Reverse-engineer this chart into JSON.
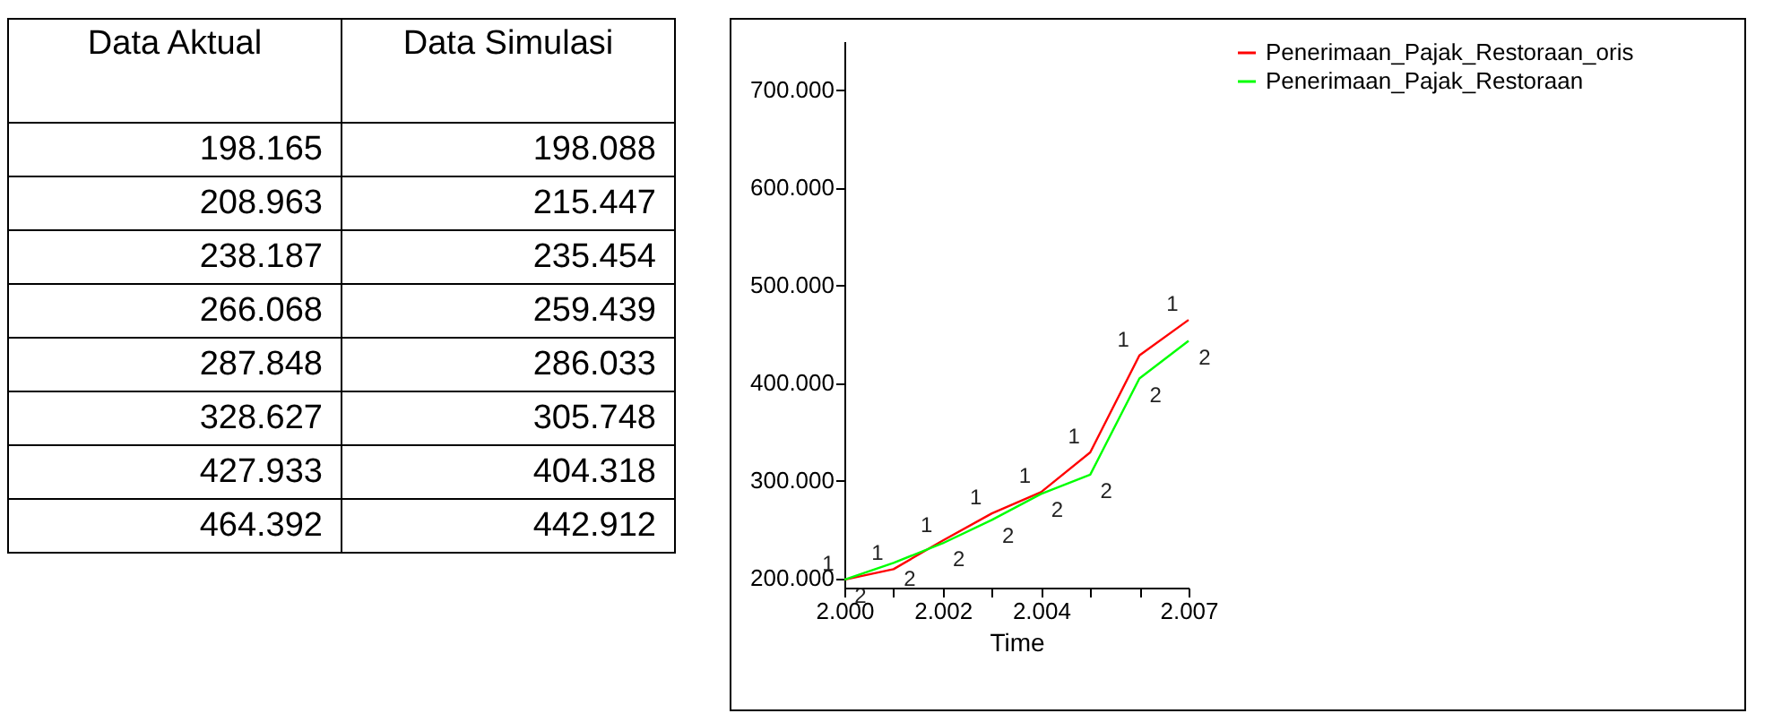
{
  "chart_data": [
    {
      "type": "other",
      "annotations": [
        "Data Aktual",
        "Data Simulasi",
        "198.165",
        "198.088",
        "208.963",
        "215.447",
        "238.187",
        "235.454",
        "266.068",
        "259.439",
        "287.848",
        "286.033",
        "328.627",
        "305.748",
        "427.933",
        "404.318",
        "464.392",
        "442.912"
      ]
    },
    {
      "type": "line",
      "xlabel": "Time",
      "x": [
        2000,
        2001,
        2002,
        2003,
        2004,
        2005,
        2006,
        2007
      ],
      "series": [
        {
          "name": "Penerimaan_Pajak_Restoraan_oris",
          "color": "#ff0000",
          "values": [
            198165,
            208963,
            238187,
            266068,
            287848,
            328627,
            427933,
            464392
          ]
        },
        {
          "name": "Penerimaan_Pajak_Restoraan",
          "color": "#00ff00",
          "values": [
            198088,
            215447,
            235454,
            259439,
            286033,
            305748,
            404318,
            442912
          ]
        }
      ],
      "annotations": [
        {
          "text": "1",
          "x": 2000,
          "y": 198165
        },
        {
          "text": "1",
          "x": 2001,
          "y": 208963
        },
        {
          "text": "1",
          "x": 2002,
          "y": 238187
        },
        {
          "text": "1",
          "x": 2003,
          "y": 266068
        },
        {
          "text": "1",
          "x": 2004,
          "y": 287848
        },
        {
          "text": "1",
          "x": 2005,
          "y": 328627
        },
        {
          "text": "1",
          "x": 2006,
          "y": 427933
        },
        {
          "text": "1",
          "x": 2007,
          "y": 464392
        },
        {
          "text": "2",
          "x": 2000,
          "y": 198088
        },
        {
          "text": "2",
          "x": 2001,
          "y": 215447
        },
        {
          "text": "2",
          "x": 2002,
          "y": 235454
        },
        {
          "text": "2",
          "x": 2003,
          "y": 259439
        },
        {
          "text": "2",
          "x": 2004,
          "y": 286033
        },
        {
          "text": "2",
          "x": 2005,
          "y": 305748
        },
        {
          "text": "2",
          "x": 2006,
          "y": 404318
        },
        {
          "text": "2",
          "x": 2007,
          "y": 442912
        }
      ],
      "xlim": [
        2000,
        2007
      ],
      "xticks": [
        {
          "value": 2000,
          "label": "2.000"
        },
        {
          "value": 2001,
          "label": null
        },
        {
          "value": 2002,
          "label": "2.002"
        },
        {
          "value": 2003,
          "label": null
        },
        {
          "value": 2004,
          "label": "2.004"
        },
        {
          "value": 2005,
          "label": null
        },
        {
          "value": 2006,
          "label": null
        },
        {
          "value": 2007,
          "label": "2.007"
        }
      ],
      "ylim": [
        190000,
        750000
      ],
      "yticks": [
        {
          "value": 200000,
          "label": "200.000"
        },
        {
          "value": 300000,
          "label": "300.000"
        },
        {
          "value": 400000,
          "label": "400.000"
        },
        {
          "value": 500000,
          "label": "500.000"
        },
        {
          "value": 600000,
          "label": "600.000"
        },
        {
          "value": 700000,
          "label": "700.000"
        }
      ],
      "legend": "right",
      "line_style": "solid"
    }
  ]
}
